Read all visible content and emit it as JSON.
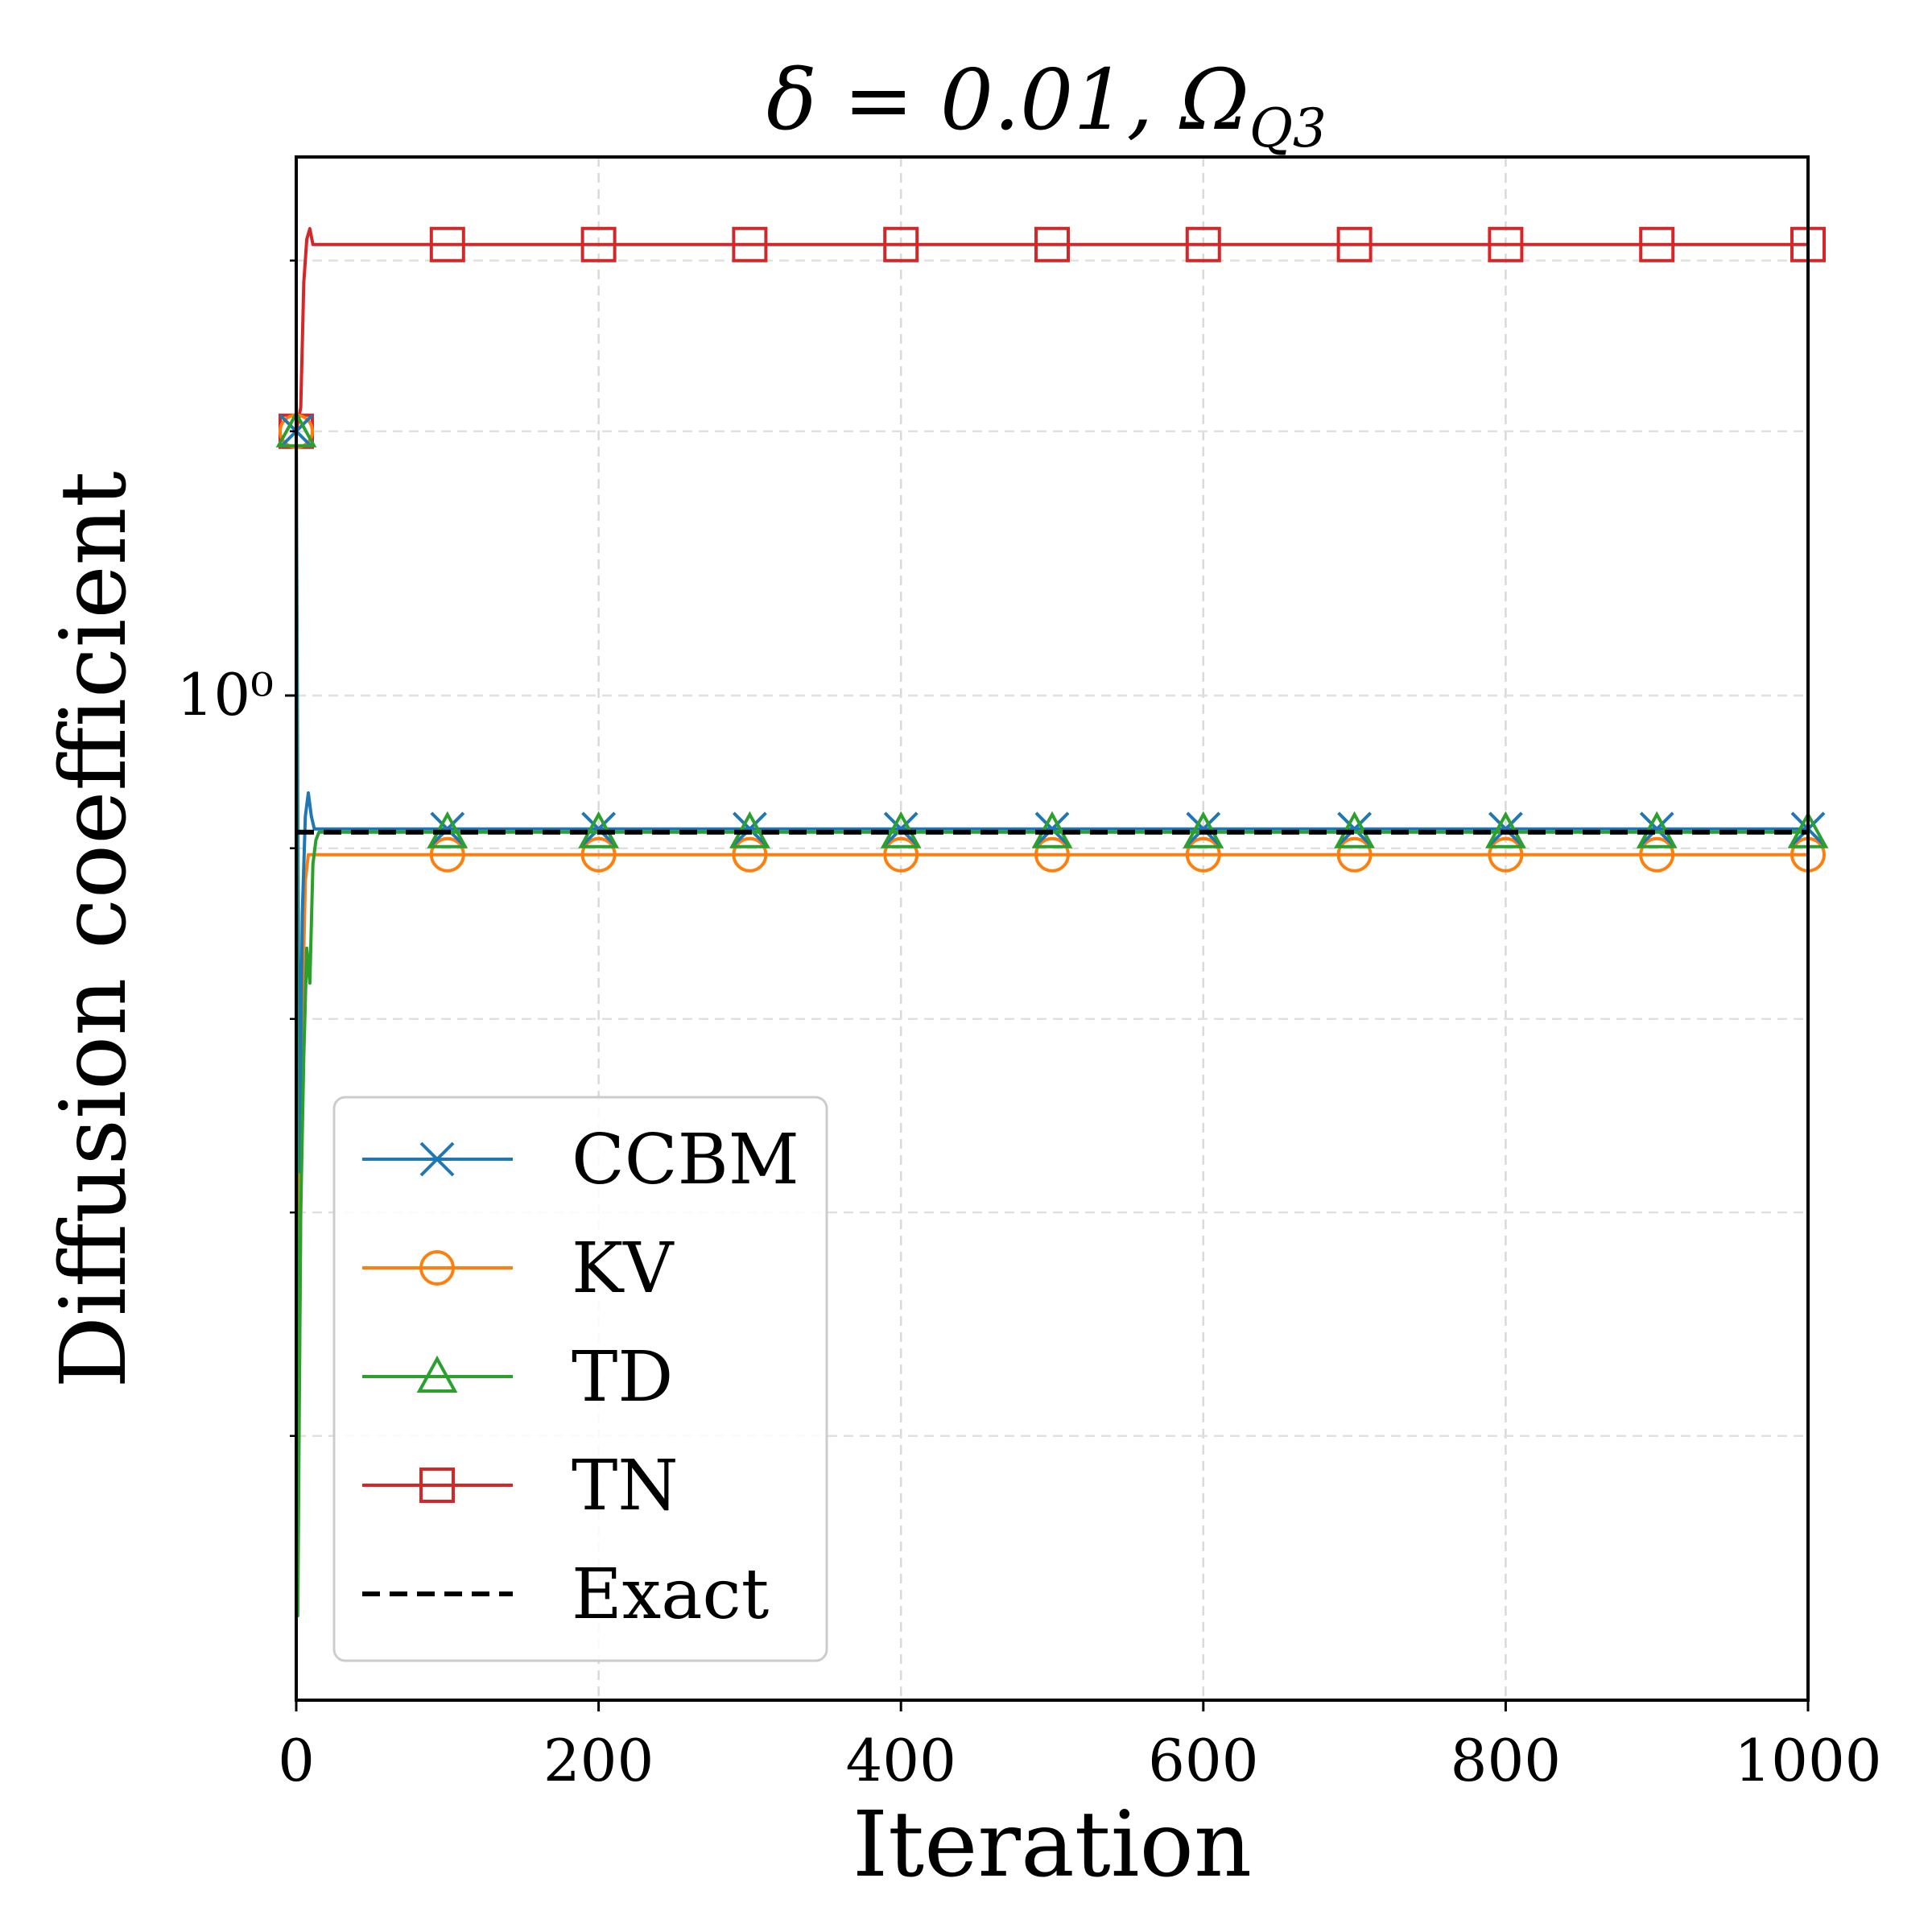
{
  "chart_data": {
    "type": "line",
    "title": "δ = 0.01,  Ω",
    "title_subscript": "Q3",
    "xlabel": "Iteration",
    "ylabel": "Diffusion coefficient",
    "xlim": [
      0,
      1000
    ],
    "ylim": [
      0.5,
      1.45
    ],
    "yscale": "log",
    "x_ticks": [
      0,
      200,
      400,
      600,
      800,
      1000
    ],
    "x_tick_labels": [
      "0",
      "200",
      "400",
      "600",
      "800",
      "1000"
    ],
    "y_ticks": [
      1.0
    ],
    "y_tick_labels": [
      "10⁰"
    ],
    "y_minor_ticks": [
      0.6,
      0.7,
      0.8,
      0.9,
      1.0,
      1.2,
      1.35
    ],
    "grid": true,
    "legend_position": "lower-left",
    "series": [
      {
        "name": "CCBM",
        "color": "#1f77b4",
        "marker": "x",
        "x": [
          0,
          2,
          4,
          6,
          8,
          10,
          12,
          14,
          100,
          200,
          300,
          400,
          500,
          600,
          700,
          800,
          900,
          1000
        ],
        "y": [
          1.2,
          0.72,
          0.86,
          0.92,
          0.935,
          0.92,
          0.912,
          0.912,
          0.912,
          0.912,
          0.912,
          0.912,
          0.912,
          0.912,
          0.912,
          0.912,
          0.912,
          0.912
        ]
      },
      {
        "name": "KV",
        "color": "#ff7f0e",
        "marker": "o",
        "x": [
          0,
          2,
          4,
          6,
          8,
          10,
          12,
          100,
          200,
          300,
          400,
          500,
          600,
          700,
          800,
          900,
          1000
        ],
        "y": [
          1.2,
          0.62,
          0.8,
          0.88,
          0.896,
          0.896,
          0.896,
          0.896,
          0.896,
          0.896,
          0.896,
          0.896,
          0.896,
          0.896,
          0.896,
          0.896,
          0.896
        ]
      },
      {
        "name": "TD",
        "color": "#2ca02c",
        "marker": "^",
        "x": [
          0,
          1,
          3,
          5,
          7,
          9,
          11,
          13,
          15,
          100,
          200,
          300,
          400,
          500,
          600,
          700,
          800,
          900,
          1000
        ],
        "y": [
          1.2,
          0.53,
          0.7,
          0.78,
          0.84,
          0.82,
          0.89,
          0.905,
          0.91,
          0.91,
          0.91,
          0.91,
          0.91,
          0.91,
          0.91,
          0.91,
          0.91,
          0.91,
          0.91
        ]
      },
      {
        "name": "TN",
        "color": "#d62728",
        "marker": "s",
        "x": [
          0,
          3,
          5,
          7,
          9,
          11,
          13,
          100,
          200,
          300,
          400,
          500,
          600,
          700,
          800,
          900,
          1000
        ],
        "y": [
          1.2,
          1.22,
          1.33,
          1.37,
          1.38,
          1.365,
          1.365,
          1.365,
          1.365,
          1.365,
          1.365,
          1.365,
          1.365,
          1.365,
          1.365,
          1.365,
          1.365
        ]
      },
      {
        "name": "Exact",
        "color": "#000000",
        "marker": "none",
        "dashed": true,
        "x": [
          0,
          1000
        ],
        "y": [
          0.91,
          0.91
        ]
      }
    ]
  }
}
